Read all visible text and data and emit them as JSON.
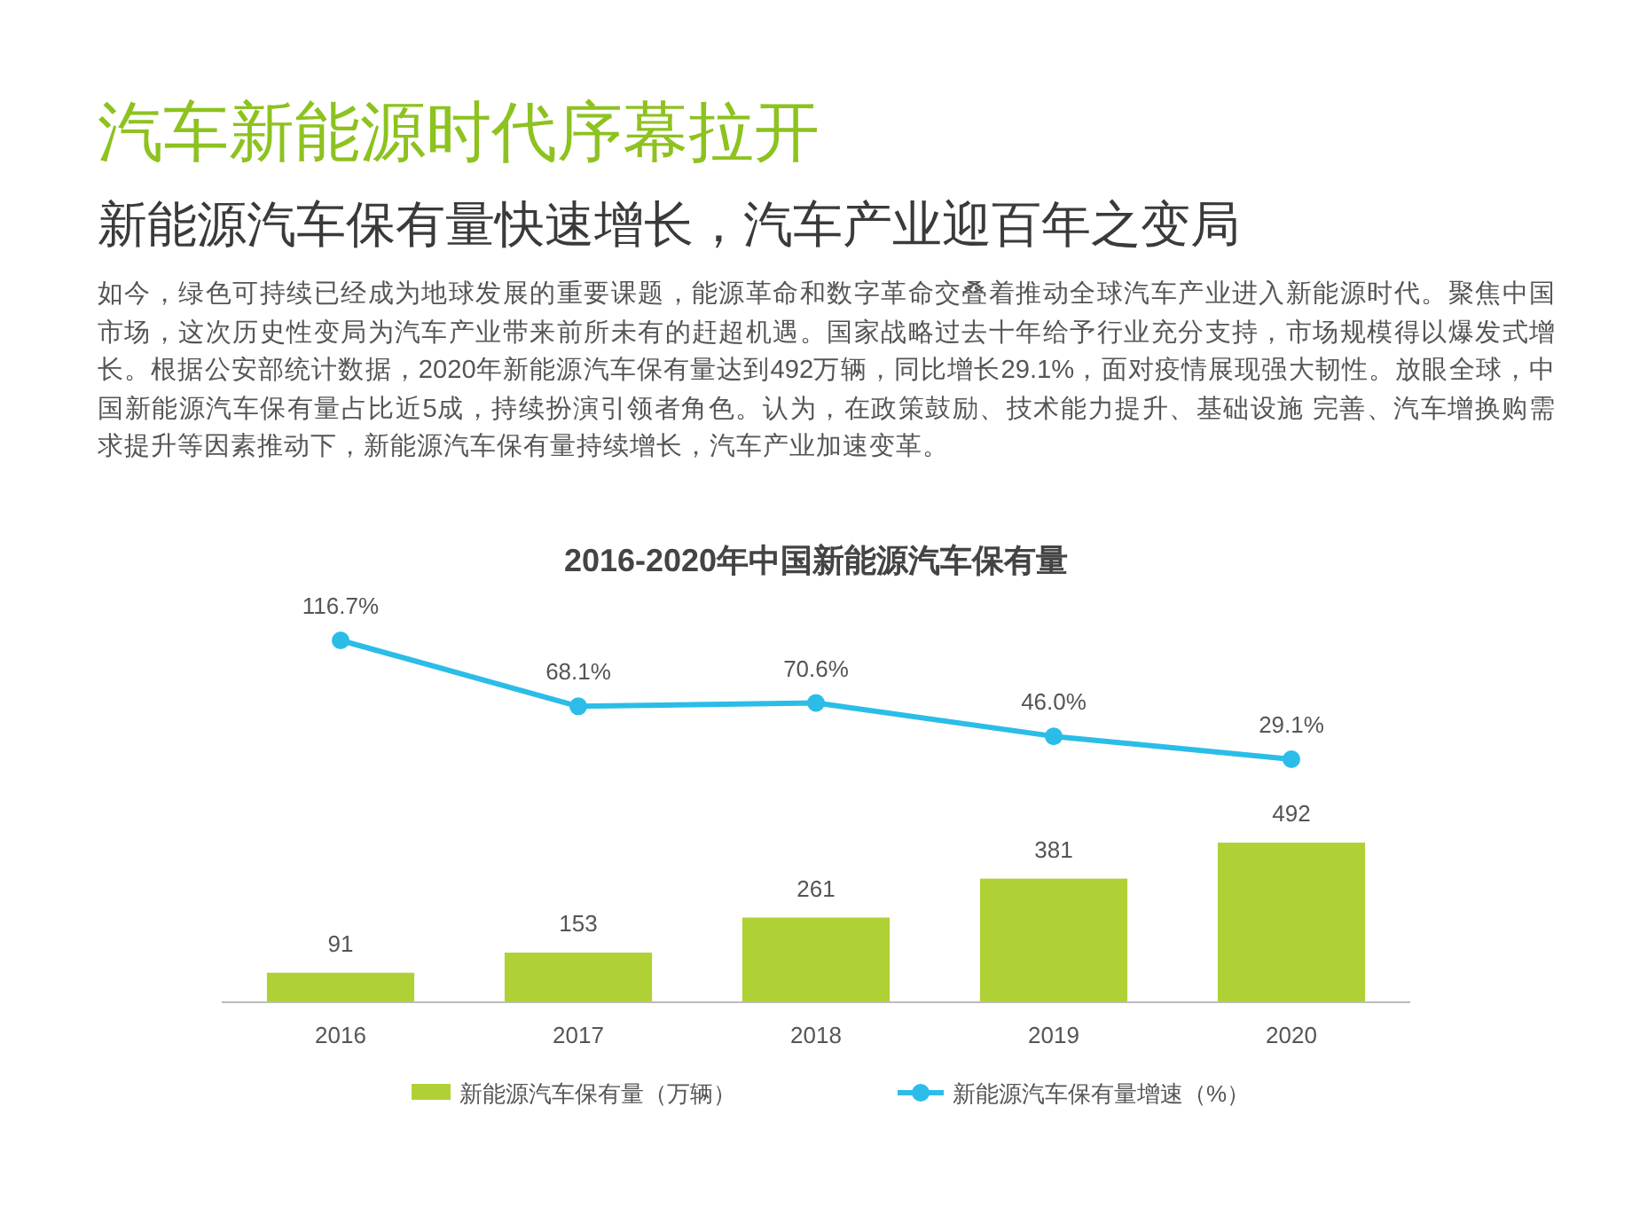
{
  "chart_data": [
    {
      "type": "bar",
      "annotations": [
        "汽车新能源时代序幕拉开",
        "新能源汽车保有量快速增长，汽车产业迎百年之变局",
        "如今，绿色可持续已经成为地球发展的重要课题，能源革命和数字革命交叠着推动全球汽车产业进入新能源时代。聚焦中国市场，这次历史性变局为汽车产业带来前所未有的赶超机遇。国家战略过去十年给予行业充分支持，市场规模得以爆发式增长。根据公安部统计数据，2020年新能源汽车保有量达到492万辆，同比增长29.1%，面对疫情展现强大韧性。放眼全球，中国新能源汽车保有量占比近5成，持续扮演引领者角色。认为，在政策鼓励、技术能力提升、基础设施 完善、汽车增换购需求提升等因素推动下，新能源汽车保有量持续增长，汽车产业加速变革。"
      ],
      "categories": [
        "2016",
        "2017",
        "2018",
        "2019",
        "2020"
      ],
      "series": [
        {
          "name": "新能源汽车保有量（万辆）",
          "color": "#b0d136",
          "values": [
            91,
            153,
            261,
            381,
            492
          ]
        }
      ],
      "data_labels": true,
      "legend": "bottom"
    },
    {
      "type": "line",
      "title": "2016-2020年中国新能源汽车保有量",
      "categories": [
        null,
        null,
        null,
        null,
        null
      ],
      "series": [
        {
          "name": "新能源汽车保有量增速（%）",
          "color": "#2bbde8",
          "values": [
            116.7,
            68.1,
            70.6,
            46.0,
            29.1
          ],
          "value_labels": [
            "116.7%",
            "68.1%",
            "70.6%",
            "46.0%",
            "29.1%"
          ]
        }
      ],
      "legend": "bottom",
      "marker": "circle",
      "line_style": "solid"
    }
  ]
}
